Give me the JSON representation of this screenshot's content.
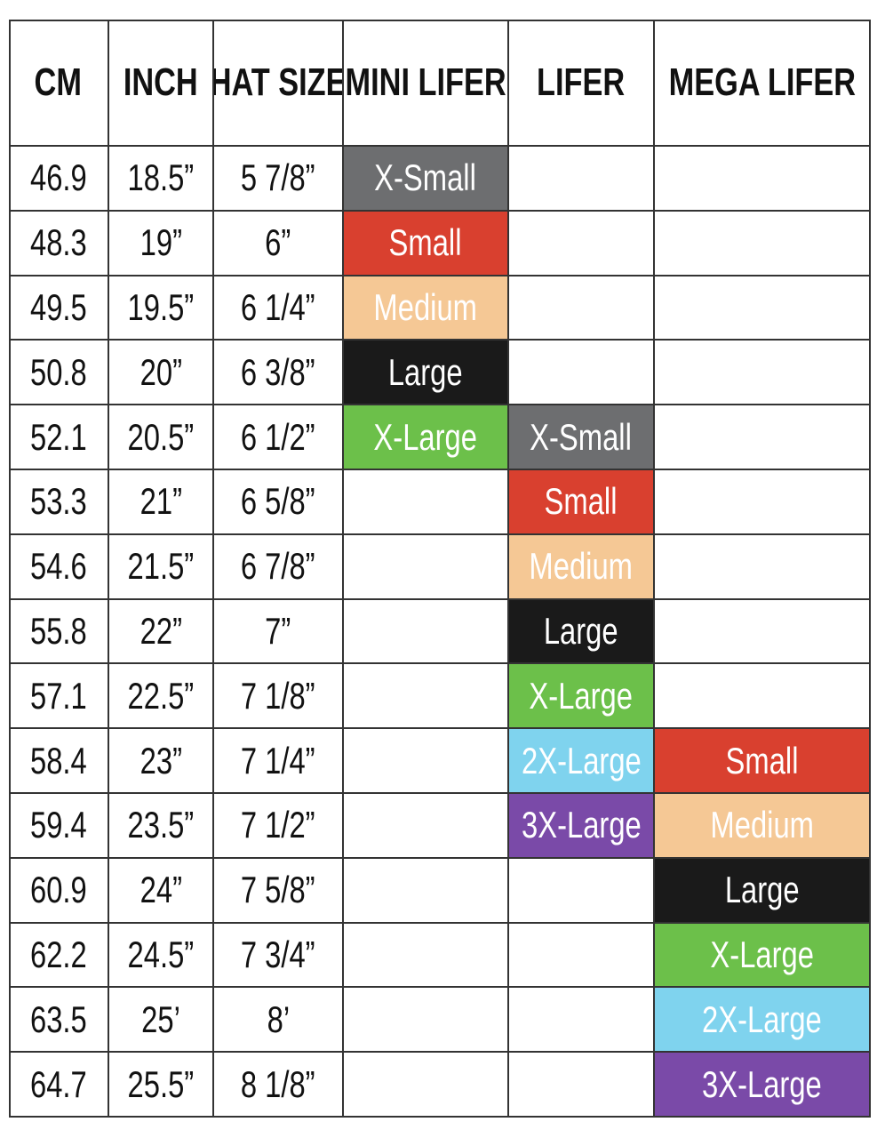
{
  "table": {
    "columns": [
      "CM",
      "INCH",
      "HAT SIZE",
      "MINI LIFER",
      "LIFER",
      "MEGA LIFER"
    ],
    "rows": [
      [
        "46.9",
        "18.5”",
        "5 7/8”",
        {
          "text": "X-Small",
          "color": "#6d6e70"
        },
        null,
        null
      ],
      [
        "48.3",
        "19”",
        "6”",
        {
          "text": "Small",
          "color": "#d9402f"
        },
        null,
        null
      ],
      [
        "49.5",
        "19.5”",
        "6 1/4”",
        {
          "text": "Medium",
          "color": "#f5c895"
        },
        null,
        null
      ],
      [
        "50.8",
        "20”",
        "6 3/8”",
        {
          "text": "Large",
          "color": "#1a1a1a"
        },
        null,
        null
      ],
      [
        "52.1",
        "20.5”",
        "6 1/2”",
        {
          "text": "X-Large",
          "color": "#6cc04a"
        },
        {
          "text": "X-Small",
          "color": "#6d6e70"
        },
        null
      ],
      [
        "53.3",
        "21”",
        "6 5/8”",
        null,
        {
          "text": "Small",
          "color": "#d9402f"
        },
        null
      ],
      [
        "54.6",
        "21.5”",
        "6 7/8”",
        null,
        {
          "text": "Medium",
          "color": "#f5c895"
        },
        null
      ],
      [
        "55.8",
        "22”",
        "7”",
        null,
        {
          "text": "Large",
          "color": "#1a1a1a"
        },
        null
      ],
      [
        "57.1",
        "22.5”",
        "7 1/8”",
        null,
        {
          "text": "X-Large",
          "color": "#6cc04a"
        },
        null
      ],
      [
        "58.4",
        "23”",
        "7 1/4”",
        null,
        {
          "text": "2X-Large",
          "color": "#7fd3ee"
        },
        {
          "text": "Small",
          "color": "#d9402f"
        }
      ],
      [
        "59.4",
        "23.5”",
        "7 1/2”",
        null,
        {
          "text": "3X-Large",
          "color": "#7a4aa8"
        },
        {
          "text": "Medium",
          "color": "#f5c895"
        }
      ],
      [
        "60.9",
        "24”",
        "7 5/8”",
        null,
        null,
        {
          "text": "Large",
          "color": "#1a1a1a"
        }
      ],
      [
        "62.2",
        "24.5”",
        "7 3/4”",
        null,
        null,
        {
          "text": "X-Large",
          "color": "#6cc04a"
        }
      ],
      [
        "63.5",
        "25’",
        "8’",
        null,
        null,
        {
          "text": "2X-Large",
          "color": "#7fd3ee"
        }
      ],
      [
        "64.7",
        "25.5”",
        "8 1/8”",
        null,
        null,
        {
          "text": "3X-Large",
          "color": "#7a4aa8"
        }
      ]
    ]
  }
}
